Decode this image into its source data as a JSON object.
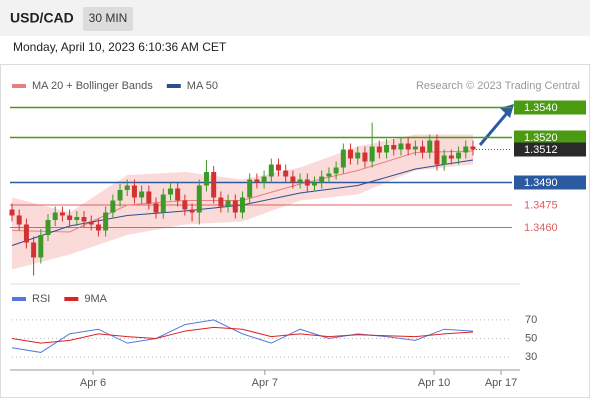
{
  "header": {
    "symbol": "USD/CAD",
    "interval": "30 MIN",
    "datetime": "Monday, April 10, 2023 6:10:36 AM CET"
  },
  "chart_data": [
    {
      "type": "candlestick",
      "note": "Research © 2023 Trading Central",
      "x": [
        0,
        1,
        2,
        3,
        4,
        5,
        6,
        7,
        8,
        9,
        10,
        11,
        12,
        13,
        14,
        15,
        16,
        17,
        18,
        19,
        20,
        21,
        22,
        23,
        24,
        25,
        26,
        27,
        28,
        29,
        30,
        31,
        32,
        33,
        34,
        35,
        36,
        37,
        38,
        39,
        40,
        41,
        42,
        43,
        44,
        45,
        46,
        47,
        48,
        49,
        50,
        51,
        52,
        53,
        54,
        55,
        56,
        57,
        58,
        59,
        60,
        61,
        62,
        63,
        64
      ],
      "open": [
        1.3472,
        1.3468,
        1.3462,
        1.345,
        1.344,
        1.3455,
        1.3465,
        1.347,
        1.3468,
        1.3465,
        1.3467,
        1.3464,
        1.3462,
        1.3458,
        1.347,
        1.3478,
        1.3485,
        1.3488,
        1.348,
        1.3484,
        1.3476,
        1.347,
        1.3482,
        1.3486,
        1.3478,
        1.3472,
        1.347,
        1.3488,
        1.3497,
        1.348,
        1.3474,
        1.3478,
        1.347,
        1.348,
        1.3492,
        1.349,
        1.3494,
        1.3502,
        1.3498,
        1.3494,
        1.349,
        1.3492,
        1.3488,
        1.349,
        1.3494,
        1.3496,
        1.35,
        1.3512,
        1.3506,
        1.351,
        1.3504,
        1.3514,
        1.351,
        1.3515,
        1.3512,
        1.3516,
        1.3512,
        1.3514,
        1.351,
        1.3518,
        1.3502,
        1.3508,
        1.3506,
        1.351,
        1.3514
      ],
      "high": [
        1.3476,
        1.3472,
        1.3466,
        1.3454,
        1.3459,
        1.3469,
        1.3474,
        1.3474,
        1.3472,
        1.3471,
        1.3471,
        1.3468,
        1.3466,
        1.3474,
        1.3482,
        1.3489,
        1.3492,
        1.3492,
        1.3488,
        1.3488,
        1.348,
        1.3486,
        1.349,
        1.349,
        1.3482,
        1.3476,
        1.3492,
        1.3505,
        1.3501,
        1.3484,
        1.3482,
        1.3482,
        1.3484,
        1.3496,
        1.3496,
        1.3498,
        1.3506,
        1.3506,
        1.3502,
        1.3498,
        1.3496,
        1.3496,
        1.3494,
        1.3498,
        1.35,
        1.3504,
        1.3516,
        1.3516,
        1.3514,
        1.3514,
        1.353,
        1.3518,
        1.3519,
        1.3519,
        1.352,
        1.352,
        1.3518,
        1.3518,
        1.3522,
        1.3522,
        1.3512,
        1.3512,
        1.3514,
        1.3518,
        1.3518
      ],
      "low": [
        1.3464,
        1.3458,
        1.3446,
        1.3428,
        1.3436,
        1.3451,
        1.3461,
        1.3464,
        1.3461,
        1.3461,
        1.346,
        1.3458,
        1.3454,
        1.3454,
        1.3466,
        1.3474,
        1.3481,
        1.3476,
        1.3476,
        1.3472,
        1.3466,
        1.3466,
        1.3478,
        1.3474,
        1.3468,
        1.3464,
        1.3462,
        1.3484,
        1.3476,
        1.347,
        1.347,
        1.3466,
        1.3466,
        1.3476,
        1.3486,
        1.3486,
        1.349,
        1.3494,
        1.349,
        1.3486,
        1.3486,
        1.3484,
        1.3484,
        1.3486,
        1.349,
        1.3492,
        1.3496,
        1.3502,
        1.3502,
        1.35,
        1.35,
        1.3506,
        1.3506,
        1.3508,
        1.3508,
        1.3508,
        1.3508,
        1.3506,
        1.3506,
        1.3498,
        1.3498,
        1.3502,
        1.3502,
        1.3506,
        1.3508
      ],
      "close": [
        1.3468,
        1.3462,
        1.345,
        1.344,
        1.3455,
        1.3465,
        1.347,
        1.3468,
        1.3465,
        1.3467,
        1.3464,
        1.3462,
        1.3458,
        1.347,
        1.3478,
        1.3485,
        1.3488,
        1.348,
        1.3484,
        1.3476,
        1.347,
        1.3482,
        1.3486,
        1.3478,
        1.3472,
        1.347,
        1.3488,
        1.3497,
        1.348,
        1.3474,
        1.3478,
        1.347,
        1.348,
        1.3492,
        1.349,
        1.3494,
        1.3502,
        1.3498,
        1.3494,
        1.349,
        1.3492,
        1.3488,
        1.349,
        1.3494,
        1.3496,
        1.35,
        1.3512,
        1.3506,
        1.351,
        1.3504,
        1.3514,
        1.351,
        1.3515,
        1.3512,
        1.3516,
        1.3512,
        1.3514,
        1.351,
        1.3518,
        1.3502,
        1.3508,
        1.3506,
        1.351,
        1.3514,
        1.3512
      ],
      "up_color": "#3c9a2a",
      "down_color": "#d23232",
      "xlim": [
        0,
        74
      ],
      "ylim": [
        1.3425,
        1.3545
      ],
      "series": [
        {
          "name": "MA 20 + Bollinger Bands",
          "color": "#e88080",
          "band_color": "#fbdada",
          "x": [
            0,
            8,
            16,
            24,
            32,
            40,
            48,
            56,
            64
          ],
          "values": [
            1.3458,
            1.3457,
            1.3475,
            1.3478,
            1.3478,
            1.3489,
            1.3498,
            1.351,
            1.3511
          ],
          "upper": [
            1.348,
            1.347,
            1.3495,
            1.3497,
            1.3492,
            1.35,
            1.3514,
            1.3522,
            1.3522
          ],
          "lower": [
            1.3432,
            1.3442,
            1.3455,
            1.3462,
            1.3464,
            1.3478,
            1.3482,
            1.3498,
            1.3502
          ]
        },
        {
          "name": "MA 50",
          "color": "#2c4f8f",
          "x": [
            0,
            8,
            16,
            24,
            32,
            40,
            48,
            56,
            64
          ],
          "values": [
            1.3448,
            1.3461,
            1.3468,
            1.3471,
            1.3475,
            1.3483,
            1.3488,
            1.3499,
            1.3505
          ]
        }
      ],
      "levels": [
        {
          "value": 1.354,
          "label": "1.3540",
          "color": "#4a9a12",
          "boxed": true
        },
        {
          "value": 1.352,
          "label": "1.3520",
          "color": "#4a9a12",
          "boxed": true
        },
        {
          "value": 1.349,
          "label": "1.3490",
          "color": "#2c5aa0",
          "boxed": true
        },
        {
          "value": 1.3475,
          "label": "1.3475",
          "color": "#e06060",
          "boxed": false
        },
        {
          "value": 1.346,
          "label": "1.3460",
          "color": "#e06060",
          "boxed": false
        }
      ],
      "last": {
        "value": 1.3512,
        "color": "#2a2a2a"
      }
    },
    {
      "type": "line",
      "x": [
        0,
        4,
        8,
        12,
        16,
        20,
        24,
        28,
        32,
        36,
        40,
        44,
        48,
        52,
        56,
        60,
        64
      ],
      "xlim": [
        0,
        74
      ],
      "ylim": [
        15,
        85
      ],
      "yticks": [
        30,
        50,
        70
      ],
      "grid": true,
      "xticks": [
        {
          "value": 11.25,
          "label": "Apr 6"
        },
        {
          "value": 35.1,
          "label": "Apr 7"
        },
        {
          "value": 58.6,
          "label": "Apr 10"
        },
        {
          "value": 67.9,
          "label": "Apr 17"
        }
      ],
      "series": [
        {
          "name": "RSI",
          "color": "#5577dd",
          "values": [
            40,
            35,
            55,
            60,
            45,
            50,
            65,
            70,
            55,
            45,
            60,
            50,
            55,
            52,
            48,
            60,
            58
          ]
        },
        {
          "name": "9MA",
          "color": "#dd2222",
          "values": [
            50,
            45,
            48,
            55,
            52,
            50,
            58,
            62,
            60,
            52,
            55,
            52,
            54,
            53,
            52,
            55,
            57
          ]
        }
      ]
    }
  ]
}
